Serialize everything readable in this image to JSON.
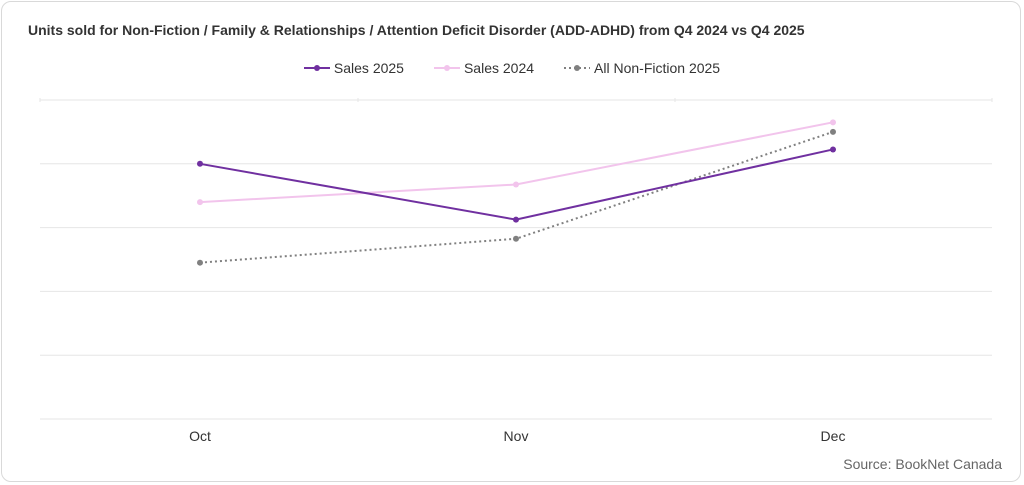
{
  "chart_data": {
    "type": "line",
    "title": "Units sold for Non-Fiction / Family & Relationships / Attention Deficit Disorder (ADD-ADHD) from Q4 2024 vs Q4 2025",
    "categories": [
      "Oct",
      "Nov",
      "Dec"
    ],
    "ylim": [
      0,
      100
    ],
    "grid": true,
    "legend_position": "top-center",
    "series": [
      {
        "name": "Sales 2025",
        "values": [
          80,
          62.5,
          84.5
        ],
        "color": "#7030a0",
        "style": "solid"
      },
      {
        "name": "Sales 2024",
        "values": [
          68,
          73.5,
          93
        ],
        "color": "#f2c4ec",
        "style": "solid"
      },
      {
        "name": "All Non-Fiction 2025",
        "values": [
          49,
          56.5,
          90
        ],
        "color": "#808080",
        "style": "dotted"
      }
    ]
  },
  "source": "Source: BookNet Canada"
}
